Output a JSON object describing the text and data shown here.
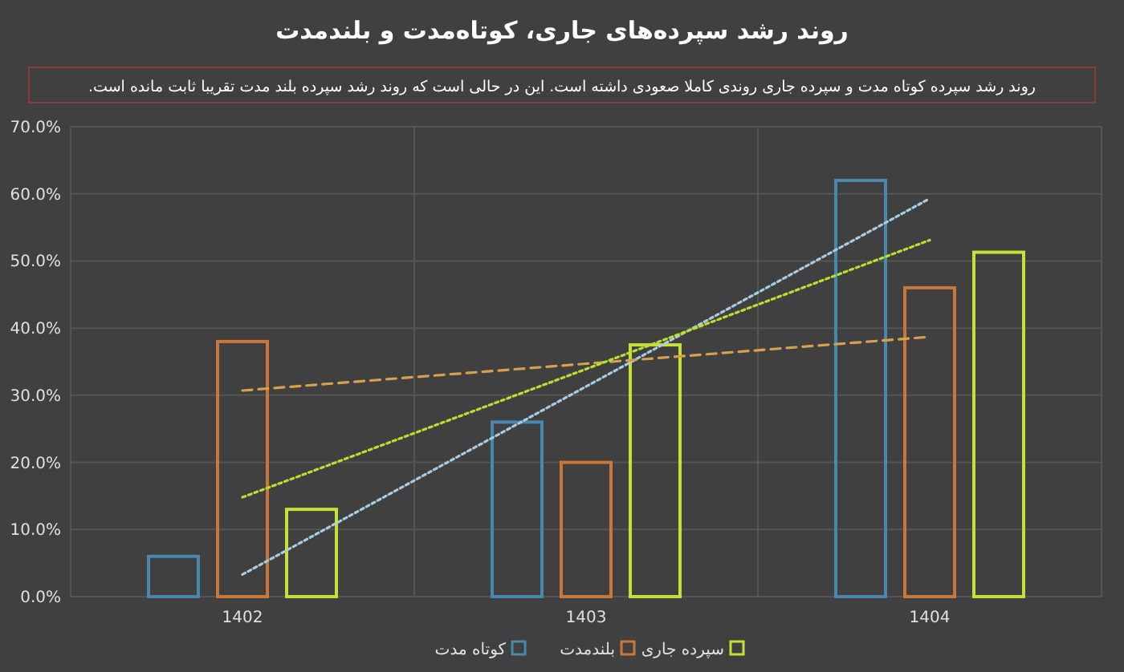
{
  "chart_data": {
    "type": "bar",
    "title": "روند رشد سپرده‌های جاری، کوتاه‌مدت و بلندمدت",
    "subtitle": "روند رشد سپرده کوتاه مدت و سپرده جاری روندی کاملا صعودی داشته است. این در حالی است که روند رشد سپرده بلند مدت تقریبا ثابت مانده است.",
    "categories": [
      "1402",
      "1403",
      "1404"
    ],
    "series": [
      {
        "name": "کوتاه مدت",
        "color": "#4a87ad",
        "values": [
          6,
          26,
          62
        ]
      },
      {
        "name": "بلندمدت",
        "color": "#c8763a",
        "values": [
          38,
          20,
          46
        ]
      },
      {
        "name": "سپرده جاری",
        "color": "#c6e03a",
        "values": [
          13,
          37.5,
          51.3
        ]
      },
      {
        "type": "line",
        "color": "#a8cce4",
        "line_style": "dotted",
        "values": [
          3.3,
          31.3,
          59.3
        ]
      },
      {
        "type": "line",
        "color": "#d6a050",
        "line_style": "dashed",
        "values": [
          30.7,
          34.7,
          38.7
        ]
      },
      {
        "type": "line",
        "color": "#b8e030",
        "line_style": "dotted",
        "values": [
          14.8,
          33.9,
          53.1
        ]
      }
    ],
    "ylim": [
      0,
      70
    ],
    "yticks": [
      {
        "value": 0,
        "label": "0.0%"
      },
      {
        "value": 10,
        "label": "10.0%"
      },
      {
        "value": 20,
        "label": "20.0%"
      },
      {
        "value": 30,
        "label": "30.0%"
      },
      {
        "value": 40,
        "label": "40.0%"
      },
      {
        "value": 50,
        "label": "50.0%"
      },
      {
        "value": 60,
        "label": "60.0%"
      },
      {
        "value": 70,
        "label": "70.0%"
      }
    ],
    "grid": true,
    "legend": "bottom"
  }
}
